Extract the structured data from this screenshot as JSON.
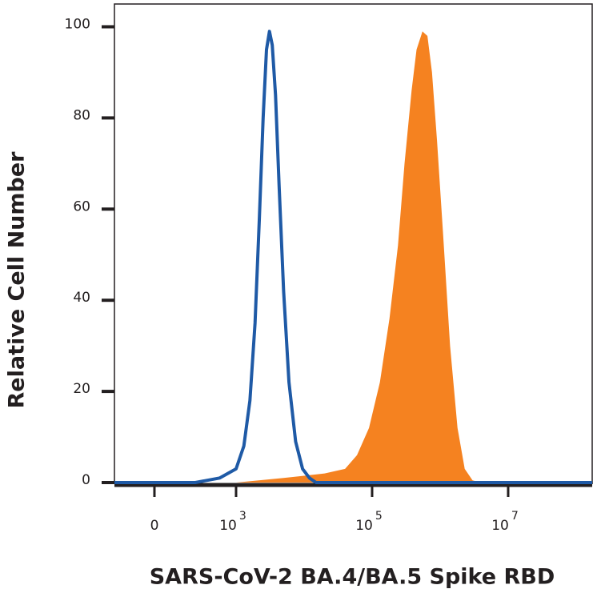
{
  "chart_data": {
    "type": "histogram-overlay",
    "xlabel": "SARS-CoV-2 BA.4/BA.5 Spike RBD",
    "ylabel": "Relative Cell Number",
    "xlim": [
      -490,
      172000000
    ],
    "ylim": [
      0,
      105
    ],
    "xticks": [
      {
        "value": 0,
        "label": "0"
      },
      {
        "value": 1000,
        "label": "10",
        "power": "3"
      },
      {
        "value": 100000,
        "label": "10",
        "power": "5"
      },
      {
        "value": 10000000,
        "label": "10",
        "power": "7"
      }
    ],
    "yticks": [
      0,
      20,
      40,
      60,
      80,
      100
    ],
    "series": [
      {
        "style": "fill",
        "color": "#f58220",
        "x": [
          -490,
          1000,
          5000,
          10000,
          20000,
          40000,
          60000,
          90000,
          130000,
          180000,
          240000,
          300000,
          380000,
          450000,
          550000,
          650000,
          760000,
          900000,
          1100000,
          1400000,
          1800000,
          2300000,
          3000000,
          4000000,
          172000000
        ],
        "values": [
          0,
          0,
          1,
          1.5,
          2,
          3,
          6,
          12,
          22,
          36,
          52,
          70,
          86,
          95,
          99,
          98,
          90,
          75,
          55,
          30,
          12,
          3,
          0.5,
          0,
          0
        ]
      },
      {
        "style": "line",
        "color": "#1f5aa6",
        "x": [
          -490,
          500,
          800,
          1000,
          1300,
          1600,
          1900,
          2200,
          2500,
          2800,
          3100,
          3400,
          3800,
          4300,
          5000,
          6000,
          7500,
          9500,
          12000,
          15000,
          172000000
        ],
        "values": [
          0,
          0,
          1,
          3,
          8,
          18,
          35,
          58,
          80,
          95,
          99,
          96,
          85,
          65,
          42,
          22,
          9,
          3,
          1,
          0,
          0
        ]
      }
    ]
  }
}
